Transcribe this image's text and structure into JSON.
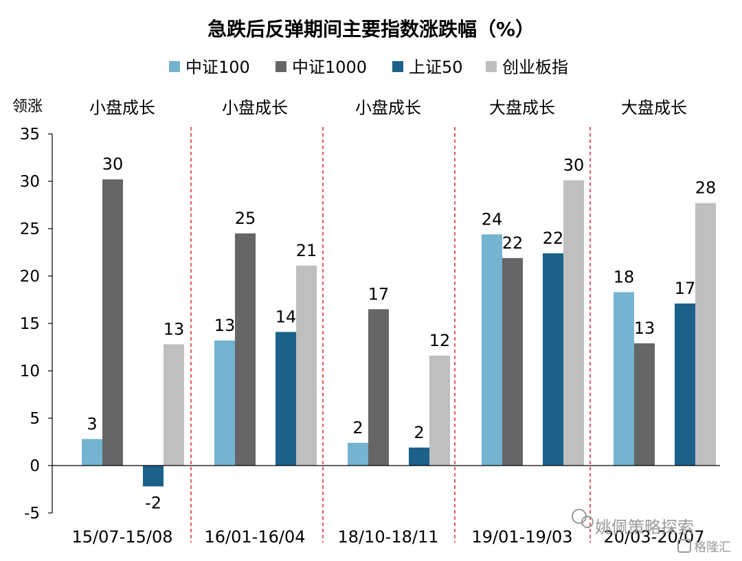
{
  "chart_data": {
    "type": "bar",
    "title": "急跌后反弹期间主要指数涨跌幅（%）",
    "corner_label": "领涨",
    "categories": [
      "15/07-15/08",
      "16/01-16/04",
      "18/10-18/11",
      "19/01-19/03",
      "20/03-20/07"
    ],
    "group_labels": [
      "小盘成长",
      "小盘成长",
      "小盘成长",
      "大盘成长",
      "大盘成长"
    ],
    "series": [
      {
        "name": "中证100",
        "color": "#74B4D0",
        "values": [
          2.8,
          13.2,
          2.4,
          24.4,
          18.3
        ],
        "labels": [
          "3",
          "13",
          "2",
          "24",
          "18"
        ]
      },
      {
        "name": "中证1000",
        "color": "#666666",
        "values": [
          30.2,
          24.5,
          16.5,
          21.9,
          12.9
        ],
        "labels": [
          "30",
          "25",
          "17",
          "22",
          "13"
        ]
      },
      {
        "name": "上证50",
        "color": "#1B6189",
        "values": [
          -2.2,
          14.1,
          1.9,
          22.4,
          17.1
        ],
        "labels": [
          "-2",
          "14",
          "2",
          "22",
          "17"
        ]
      },
      {
        "name": "创业板指",
        "color": "#BFBFBF",
        "values": [
          12.8,
          21.1,
          11.6,
          30.1,
          27.7
        ],
        "labels": [
          "13",
          "21",
          "12",
          "30",
          "28"
        ]
      }
    ],
    "ylim": [
      -5,
      35
    ],
    "yticks": [
      -5,
      0,
      5,
      10,
      15,
      20,
      25,
      30,
      35
    ],
    "grid": false,
    "legend_position": "top",
    "separator_color": "#E0242A"
  },
  "watermark": {
    "text": "姚佩策略探索",
    "text2": "格隆汇"
  }
}
